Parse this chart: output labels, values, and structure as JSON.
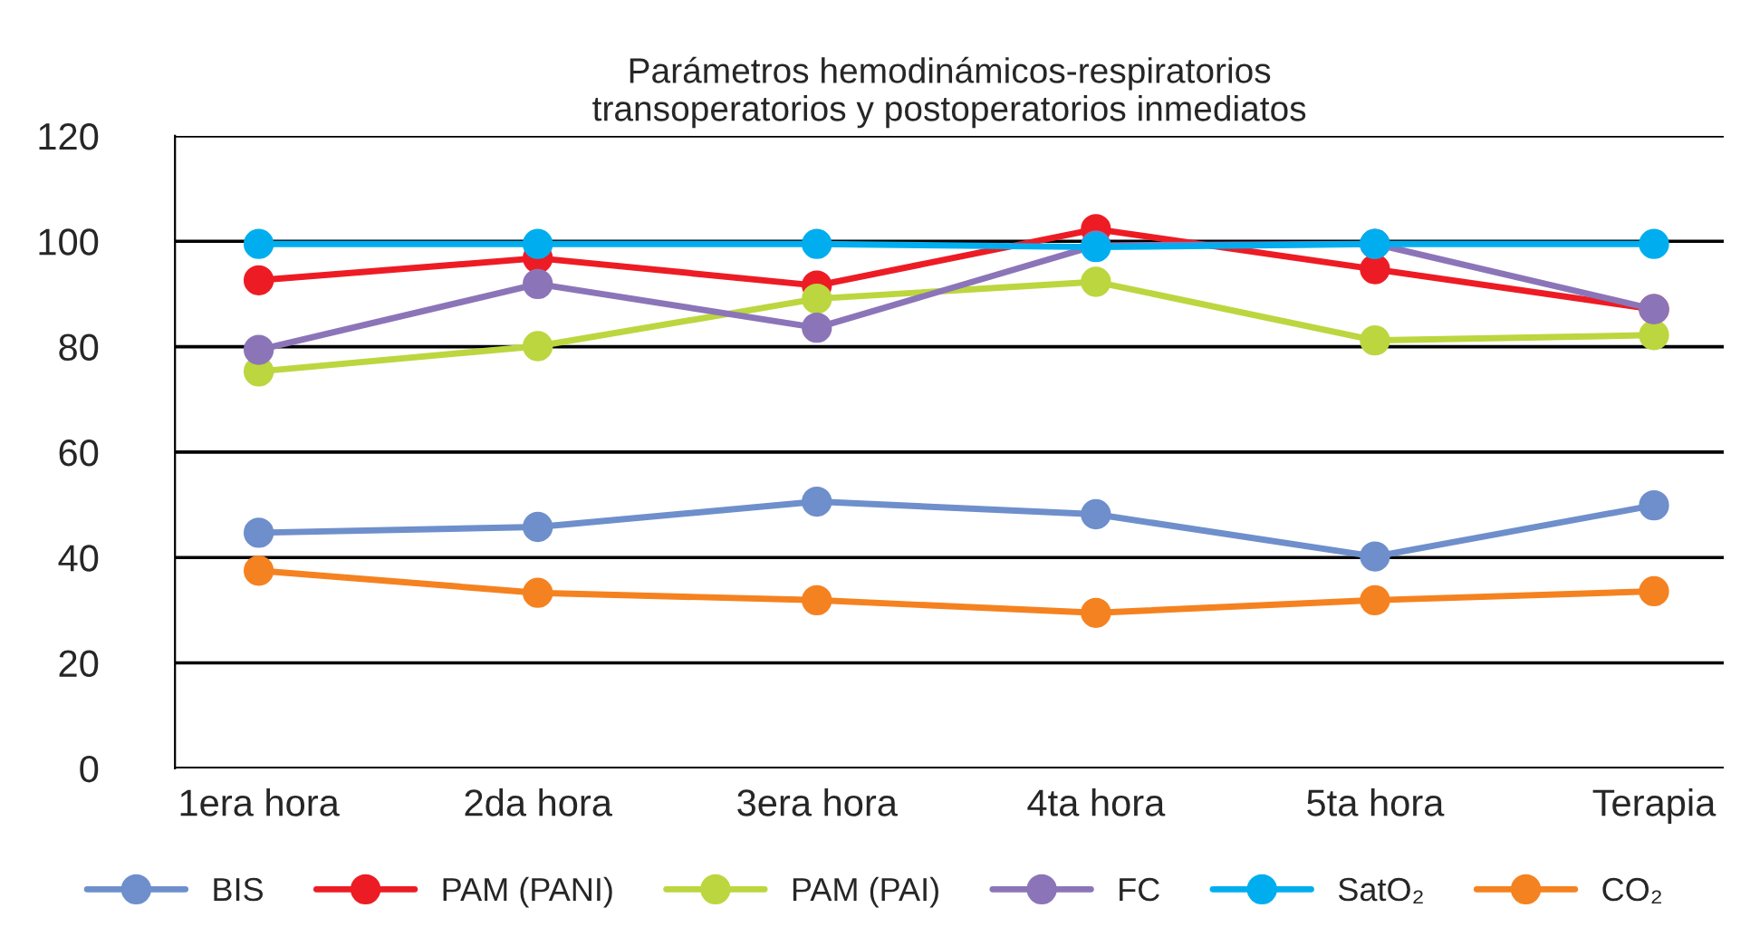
{
  "chart_data": {
    "type": "line",
    "title": "Parámetros hemodinámicos-respiratorios\ntransoperatorios y postoperatorios inmediatos",
    "categories": [
      "1era hora",
      "2da hora",
      "3era hora",
      "4ta hora",
      "5ta hora",
      "Terapia"
    ],
    "series": [
      {
        "name": "BIS",
        "color": "#6e8fcb",
        "values": [
          44.7,
          45.8,
          50.6,
          48.2,
          40.2,
          49.9
        ]
      },
      {
        "name": "PAM (PANI)",
        "color": "#ed1c24",
        "values": [
          92.6,
          96.8,
          91.6,
          102.3,
          94.7,
          87.1
        ]
      },
      {
        "name": "PAM (PAI)",
        "color": "#bcd63f",
        "values": [
          75.3,
          80.1,
          89.1,
          92.3,
          81.2,
          82.2
        ]
      },
      {
        "name": "FC",
        "color": "#8b75b8",
        "values": [
          79.4,
          91.9,
          83.6,
          99.2,
          99.5,
          87.1
        ]
      },
      {
        "name": "SatO₂",
        "color": "#00aeef",
        "values": [
          99.5,
          99.5,
          99.5,
          98.9,
          99.5,
          99.5
        ]
      },
      {
        "name": "CO₂",
        "color": "#f58220",
        "values": [
          37.5,
          33.3,
          31.9,
          29.5,
          31.9,
          33.6
        ]
      }
    ],
    "ylim": [
      0,
      120
    ],
    "yticks": [
      0,
      20,
      40,
      60,
      80,
      100,
      120
    ],
    "grid": "y",
    "legend": "bottom",
    "marker": "circle",
    "line_style": "solid"
  }
}
